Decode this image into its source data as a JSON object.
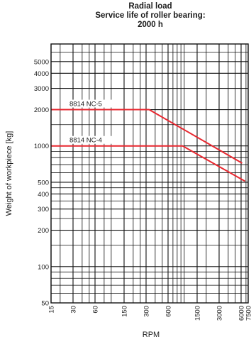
{
  "chart_data": {
    "type": "line",
    "title_lines": [
      "Radial load",
      "Service life of roller bearing:",
      "2000 h"
    ],
    "xlabel": "RPM",
    "ylabel": "Weight of workpiece [kg]",
    "x_scale": "log",
    "y_scale": "log",
    "xlim": [
      15,
      7500
    ],
    "ylim": [
      50,
      7000
    ],
    "grid": true,
    "x_ticks": [
      15,
      30,
      60,
      150,
      300,
      600,
      1500,
      3000,
      6000,
      7500
    ],
    "x_tick_labels": [
      "15",
      "30",
      "60",
      "150",
      "300",
      "600",
      "1500",
      "3000",
      "6000",
      "7500"
    ],
    "x_gridlines": [
      15,
      20,
      30,
      40,
      50,
      60,
      80,
      100,
      150,
      200,
      250,
      300,
      400,
      500,
      600,
      700,
      800,
      900,
      1000,
      1500,
      2000,
      3000,
      4000,
      5000,
      6000,
      7000
    ],
    "y_ticks": [
      50,
      100,
      200,
      300,
      400,
      500,
      1000,
      2000,
      3000,
      4000,
      5000
    ],
    "y_tick_labels": [
      "50",
      "100",
      "200",
      "300",
      "400",
      "500",
      "1000",
      "2000",
      "3000",
      "4000",
      "5000"
    ],
    "y_gridlines": [
      50,
      60,
      70,
      80,
      90,
      100,
      150,
      200,
      250,
      300,
      350,
      400,
      450,
      500,
      600,
      700,
      800,
      900,
      1000,
      1500,
      2000,
      3000,
      4000,
      5000,
      6000,
      7000
    ],
    "line_color": "#e8272f",
    "series": [
      {
        "name": "8814 NC-5",
        "x": [
          15,
          330,
          6200
        ],
        "y": [
          2000,
          2000,
          720
        ]
      },
      {
        "name": "8814 NC-4",
        "x": [
          15,
          950,
          6800
        ],
        "y": [
          1000,
          1000,
          510
        ]
      }
    ]
  }
}
